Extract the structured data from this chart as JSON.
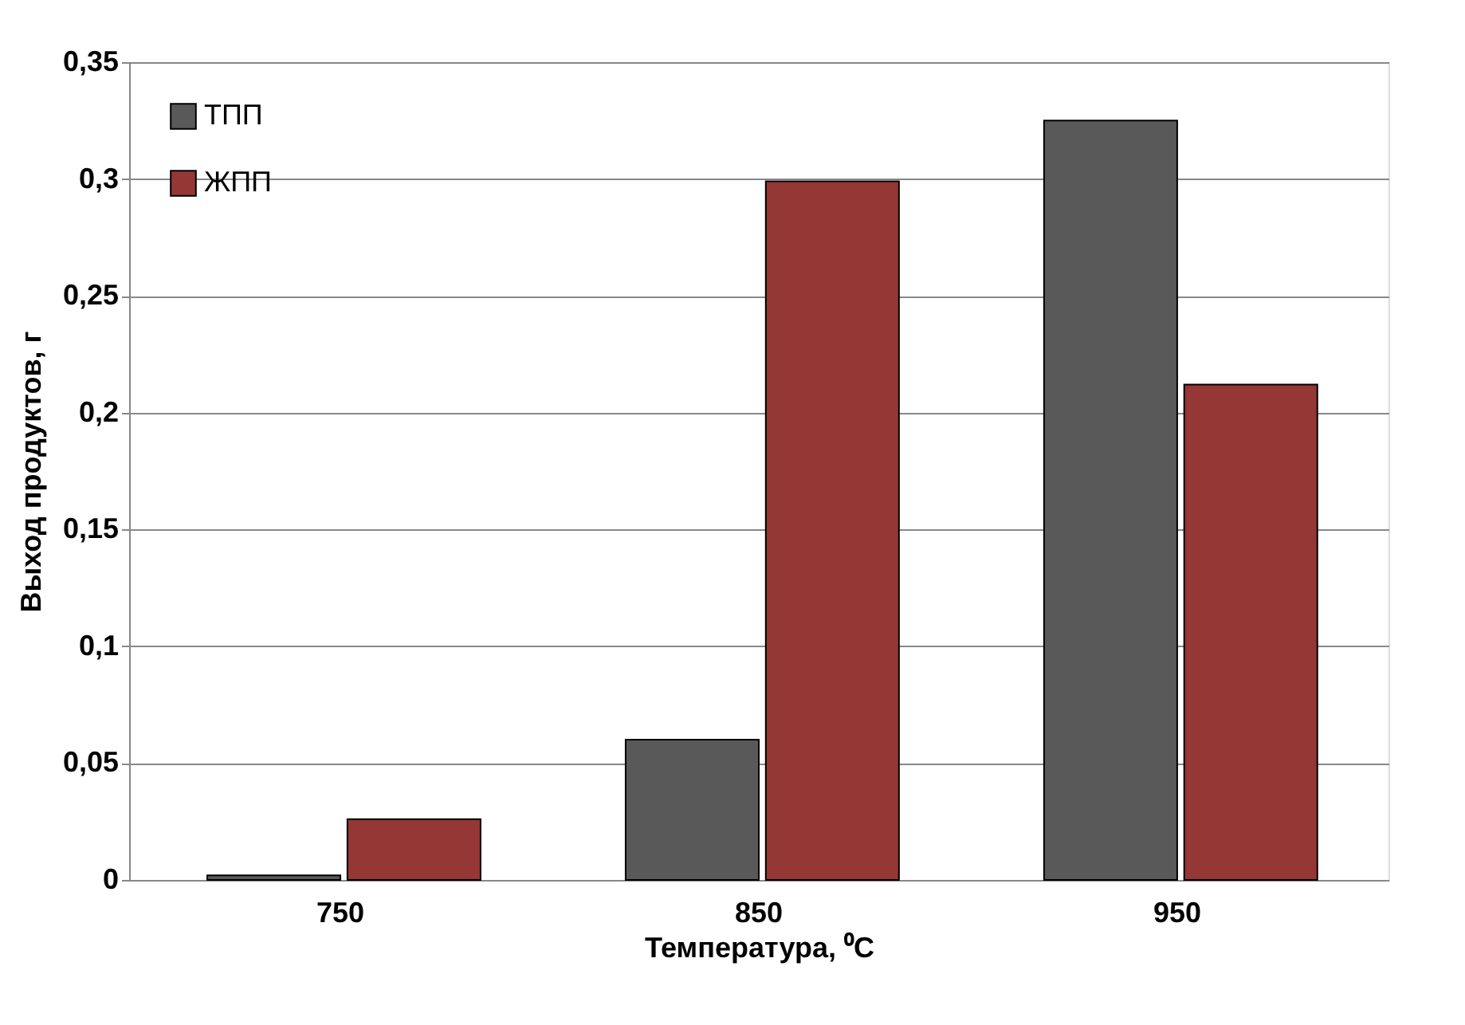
{
  "chart_data": {
    "type": "bar",
    "xlabel": "Температура, ⁰C",
    "ylabel": "Выход продуктов, г",
    "categories": [
      "750",
      "850",
      "950"
    ],
    "series": [
      {
        "name": "ТПП",
        "color": "#595959",
        "values": [
          0.002,
          0.06,
          0.325
        ]
      },
      {
        "name": "ЖПП",
        "color": "#953735",
        "values": [
          0.026,
          0.299,
          0.212
        ]
      }
    ],
    "ylim": [
      0,
      0.35
    ],
    "yticks": [
      0,
      {
        "value": 0.05,
        "label": "0,05"
      },
      {
        "value": 0.1,
        "label": "0,1"
      },
      {
        "value": 0.15,
        "label": "0,15"
      },
      {
        "value": 0.2,
        "label": "0,2"
      },
      {
        "value": 0.25,
        "label": "0,25"
      },
      {
        "value": 0.3,
        "label": "0,3"
      },
      {
        "value": 0.35,
        "label": "0,35"
      }
    ],
    "grid": "y",
    "legend": "top left"
  }
}
